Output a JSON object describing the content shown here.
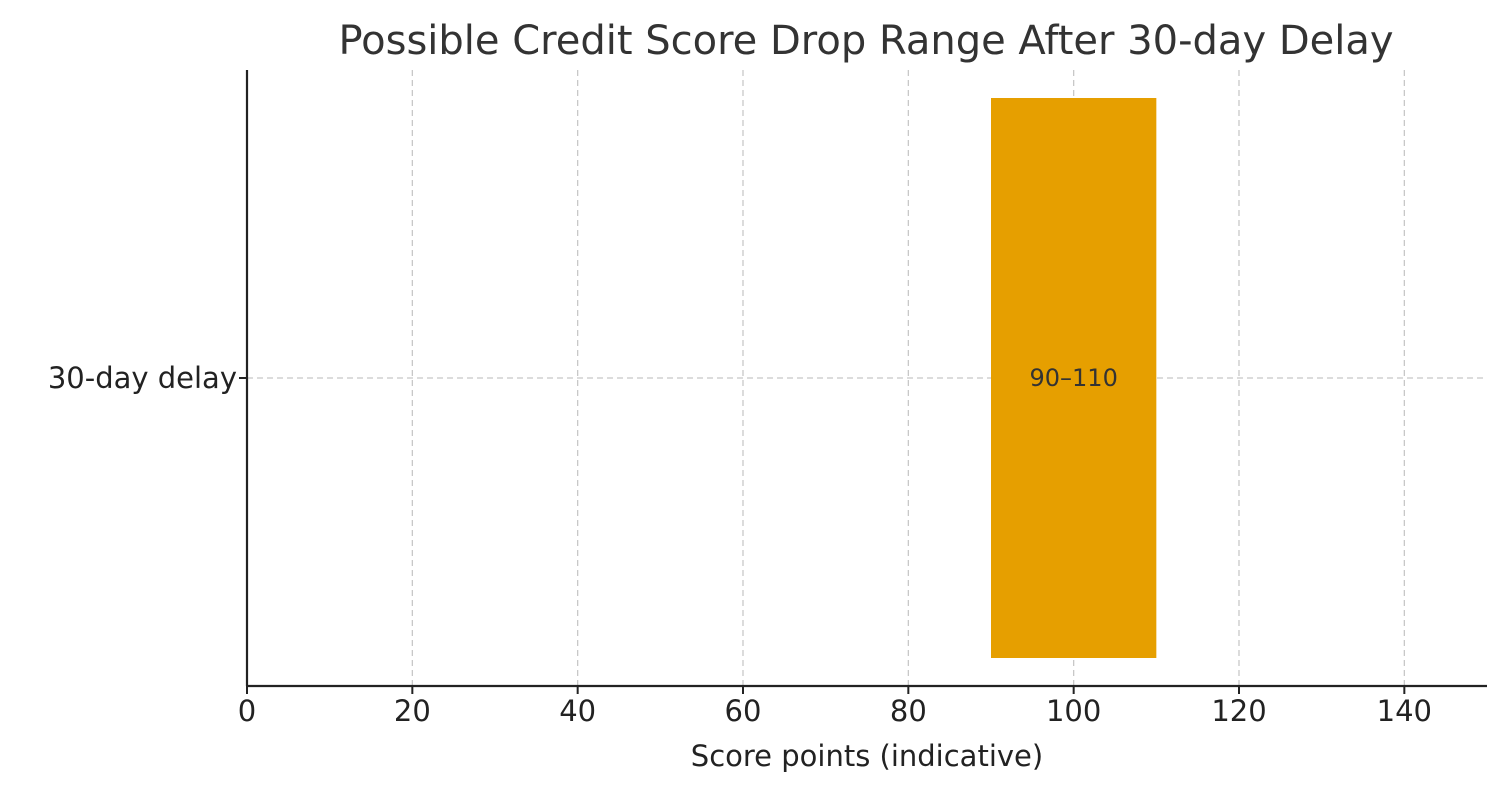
{
  "chart_data": {
    "type": "bar",
    "orientation": "horizontal-range",
    "title": "Possible Credit Score Drop Range After 30-day Delay",
    "xlabel": "Score points (indicative)",
    "ylabel": "",
    "categories": [
      "30-day delay"
    ],
    "series": [
      {
        "ranges": [
          [
            90,
            110
          ]
        ],
        "labels": [
          "90–110"
        ],
        "color": "#E69F00"
      }
    ],
    "xlim": [
      0,
      150
    ],
    "xticks": [
      0,
      20,
      40,
      60,
      80,
      100,
      120,
      140
    ],
    "grid": true,
    "legend": "none"
  }
}
